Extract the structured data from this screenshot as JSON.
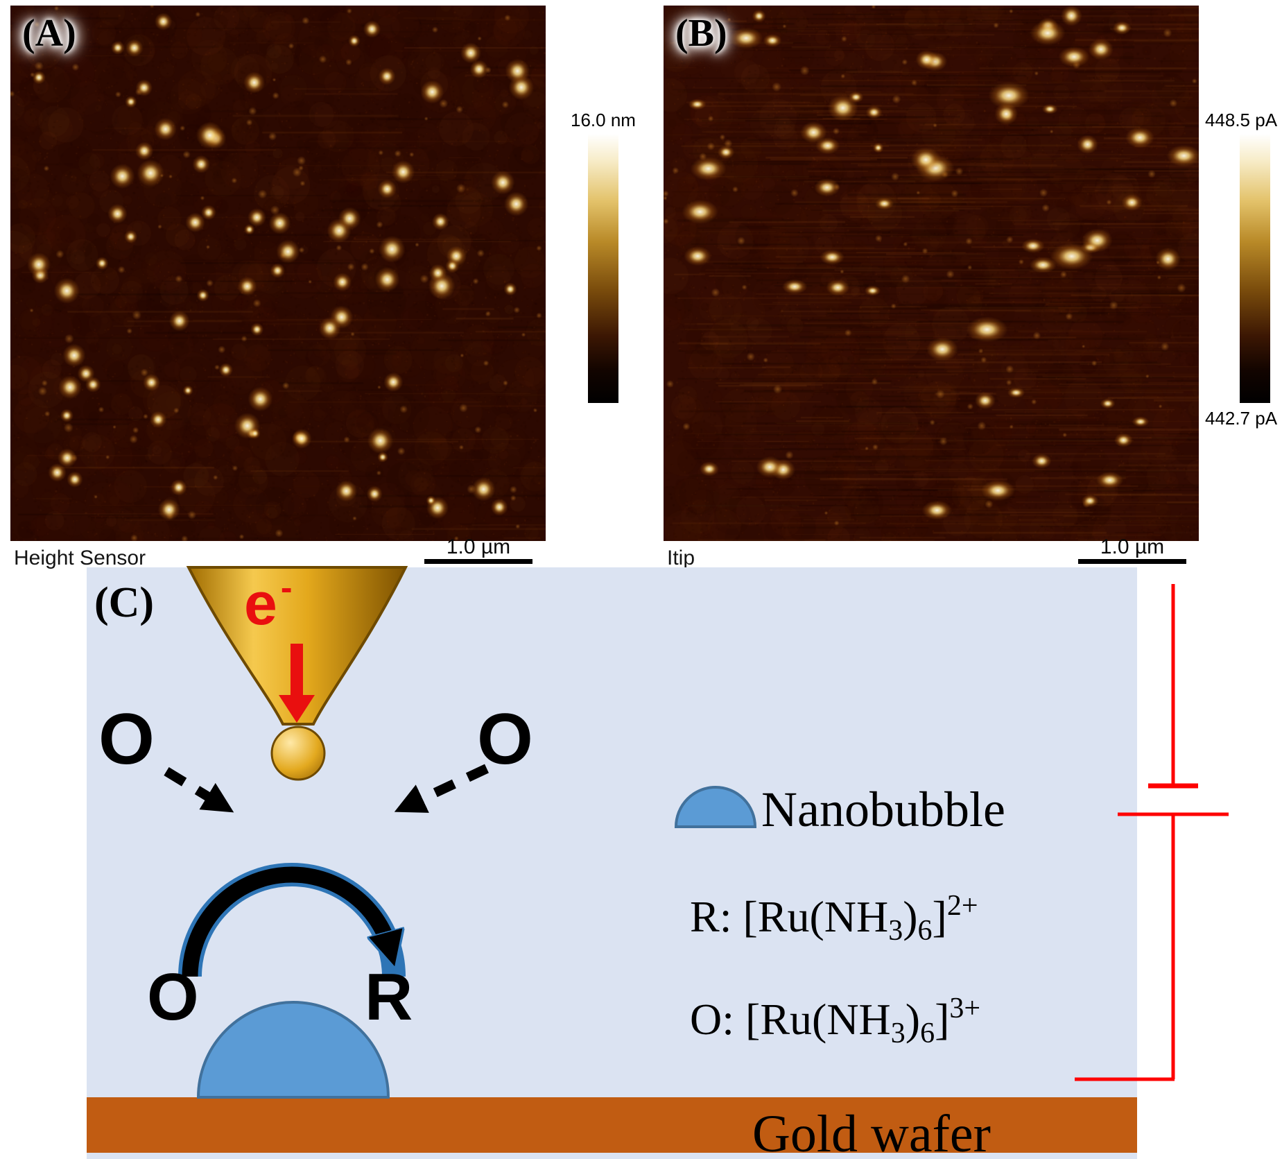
{
  "panel_a": {
    "label": "(A)",
    "detector_label": "Height Sensor",
    "scale_bar": "1.0 µm",
    "colorbar_max": "16.0 nm"
  },
  "panel_b": {
    "label": "(B)",
    "detector_label": "Itip",
    "scale_bar": "1.0 µm",
    "colorbar_max": "448.5 pA",
    "colorbar_min": "442.7 pA"
  },
  "panel_c": {
    "label": "(C)",
    "electron": {
      "base": "e",
      "sup": "-"
    },
    "left_oxidant": "O",
    "right_oxidant": "O",
    "arc_left": "O",
    "arc_right": "R",
    "legend": {
      "nanobubble": "Nanobubble",
      "r_line": {
        "prefix": "R: [Ru(NH",
        "sub1": "3",
        "paren": ")",
        "sub2": "6",
        "bracket": "]",
        "sup": "2+"
      },
      "o_line": {
        "prefix": "O: [Ru(NH",
        "sub1": "3",
        "paren": ")",
        "sub2": "6",
        "bracket": "]",
        "sup": "3+"
      }
    },
    "substrate": "Gold wafer"
  },
  "colors": {
    "afm_base": "#2c0901",
    "solution_blue": "#dbe3f2",
    "gold_wafer": "#c15c12",
    "nanobubble_fill": "#5b9bd5",
    "nanobubble_stroke": "#41719c",
    "tip_gold_light": "#f5c94e",
    "tip_gold_dark": "#7e5200",
    "circuit_red": "#fe0000",
    "electron_red": "#e90f0f"
  }
}
